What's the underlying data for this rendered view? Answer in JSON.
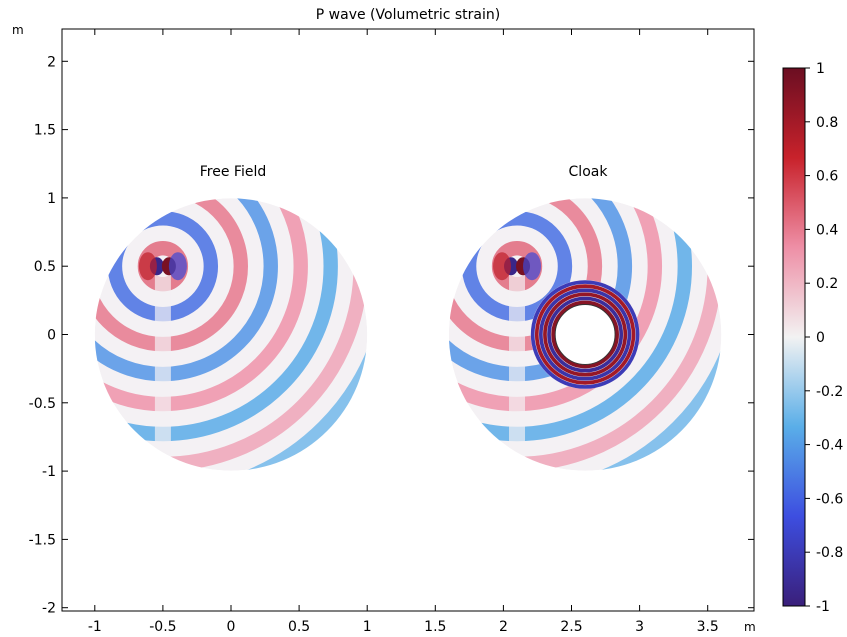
{
  "chart_data": {
    "type": "heatmap",
    "title": "P wave (Volumetric strain)",
    "x_unit": "m",
    "y_unit": "m",
    "xlim": [
      -1.25,
      3.8
    ],
    "ylim": [
      -2.05,
      2.3
    ],
    "x_ticks": [
      -1,
      -0.5,
      0,
      0.5,
      1,
      1.5,
      2,
      2.5,
      3,
      3.5
    ],
    "x_tick_labels": [
      "-1",
      "-0.5",
      "0",
      "0.5",
      "1",
      "1.5",
      "2",
      "2.5",
      "3",
      "3.5"
    ],
    "y_ticks": [
      2,
      1.5,
      1,
      0.5,
      0,
      -0.5,
      -1,
      -1.5,
      -2
    ],
    "y_tick_labels": [
      "2",
      "1.5",
      "1",
      "0.5",
      "0",
      "-0.5",
      "-1",
      "-1.5",
      "-2"
    ],
    "grid": false,
    "panels": [
      {
        "label": "Free Field",
        "center": [
          0,
          0
        ],
        "radius": 1,
        "source": [
          -0.5,
          0.5
        ],
        "cloak_inner_radius": null,
        "cloak_outer_radius": null
      },
      {
        "label": "Cloak",
        "center": [
          2.6,
          0
        ],
        "radius": 1,
        "source": [
          2.1,
          0.5
        ],
        "cloak_inner_radius": 0.22,
        "cloak_outer_radius": 0.4
      }
    ],
    "colorbar": {
      "range": [
        -1,
        1
      ],
      "ticks": [
        1,
        0.8,
        0.6,
        0.4,
        0.2,
        0,
        -0.2,
        -0.4,
        -0.6,
        -0.8,
        -1
      ],
      "tick_labels": [
        "1",
        "0.8",
        "0.6",
        "0.4",
        "0.2",
        "0",
        "-0.2",
        "-0.4",
        "-0.6",
        "-0.8",
        "-1"
      ],
      "colormap": "wave",
      "colors": [
        "#3a1f7a",
        "#3d4ee0",
        "#5aaee8",
        "#f2f2f2",
        "#ee8fa6",
        "#c8222b",
        "#6b0e22"
      ]
    }
  }
}
